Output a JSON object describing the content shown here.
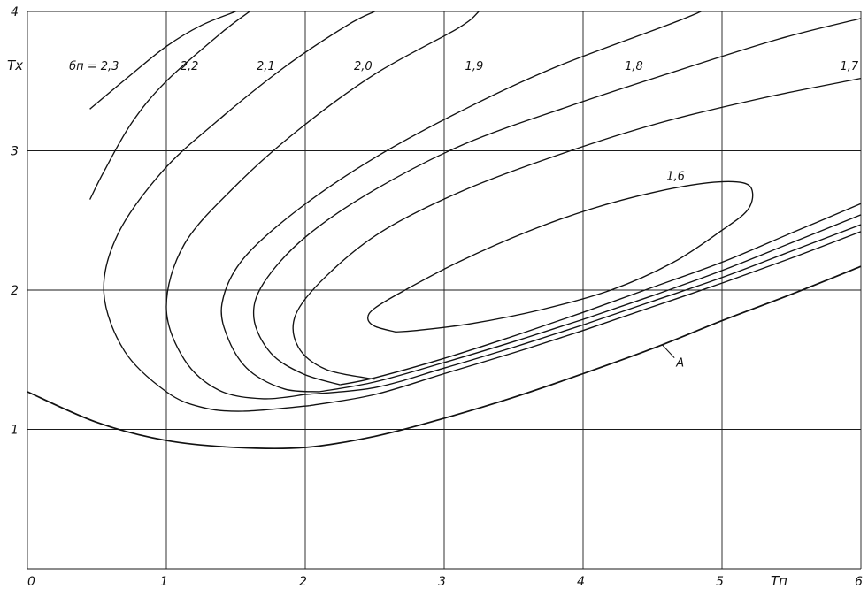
{
  "chart_data": {
    "type": "line",
    "title": "",
    "xlabel": "Tп",
    "ylabel": "Tx",
    "xlim": [
      0,
      6
    ],
    "ylim": [
      0,
      4
    ],
    "grid": true,
    "x_ticks": [
      "0",
      "1",
      "2",
      "3",
      "4",
      "5",
      "6"
    ],
    "y_ticks": [
      "1",
      "2",
      "3",
      "4"
    ],
    "series": [
      {
        "name": "бп = 2,3",
        "points": [
          [
            0.45,
            2.65
          ],
          [
            0.55,
            2.85
          ],
          [
            0.75,
            3.2
          ],
          [
            1.0,
            3.5
          ],
          [
            1.4,
            3.85
          ],
          [
            1.6,
            4.0
          ]
        ]
      },
      {
        "name": "2,2",
        "points": [
          [
            0.45,
            3.3
          ],
          [
            0.75,
            3.55
          ],
          [
            1.0,
            3.75
          ],
          [
            1.25,
            3.9
          ],
          [
            1.5,
            4.0
          ]
        ]
      },
      {
        "name": "2,1",
        "points": [
          [
            2.03,
            1.17
          ],
          [
            1.55,
            1.13
          ],
          [
            1.25,
            1.16
          ],
          [
            1.0,
            1.27
          ],
          [
            0.7,
            1.56
          ],
          [
            0.55,
            1.98
          ],
          [
            0.65,
            2.4
          ],
          [
            0.97,
            2.85
          ],
          [
            1.35,
            3.2
          ],
          [
            1.85,
            3.6
          ],
          [
            2.3,
            3.9
          ],
          [
            2.5,
            4.0
          ]
        ]
      },
      {
        "name": "2,0",
        "points": [
          [
            2.0,
            1.25
          ],
          [
            1.7,
            1.22
          ],
          [
            1.38,
            1.28
          ],
          [
            1.13,
            1.5
          ],
          [
            1.0,
            1.88
          ],
          [
            1.13,
            2.33
          ],
          [
            1.5,
            2.75
          ],
          [
            1.95,
            3.15
          ],
          [
            2.5,
            3.55
          ],
          [
            3.1,
            3.88
          ],
          [
            3.25,
            4.0
          ]
        ]
      },
      {
        "name": "1,9",
        "points": [
          [
            2.1,
            1.27
          ],
          [
            1.85,
            1.29
          ],
          [
            1.6,
            1.42
          ],
          [
            1.45,
            1.64
          ],
          [
            1.4,
            1.9
          ],
          [
            1.55,
            2.22
          ],
          [
            1.95,
            2.58
          ],
          [
            2.5,
            2.95
          ],
          [
            3.15,
            3.3
          ],
          [
            3.8,
            3.6
          ],
          [
            4.6,
            3.9
          ],
          [
            4.85,
            4.0
          ]
        ]
      },
      {
        "name": "1,8",
        "points": [
          [
            2.25,
            1.32
          ],
          [
            1.98,
            1.4
          ],
          [
            1.75,
            1.55
          ],
          [
            1.63,
            1.8
          ],
          [
            1.7,
            2.05
          ],
          [
            2.0,
            2.38
          ],
          [
            2.5,
            2.72
          ],
          [
            3.15,
            3.05
          ],
          [
            3.9,
            3.32
          ],
          [
            4.6,
            3.55
          ],
          [
            5.4,
            3.8
          ],
          [
            6.0,
            3.95
          ]
        ]
      },
      {
        "name": "1,7",
        "points": [
          [
            2.5,
            1.36
          ],
          [
            2.15,
            1.43
          ],
          [
            1.95,
            1.59
          ],
          [
            1.93,
            1.82
          ],
          [
            2.15,
            2.1
          ],
          [
            2.55,
            2.42
          ],
          [
            3.15,
            2.72
          ],
          [
            3.85,
            2.98
          ],
          [
            4.55,
            3.2
          ],
          [
            5.3,
            3.38
          ],
          [
            6.0,
            3.52
          ]
        ]
      },
      {
        "name": "1,6",
        "points": [
          [
            2.65,
            1.7
          ],
          [
            2.5,
            1.74
          ],
          [
            2.45,
            1.8
          ],
          [
            2.5,
            1.87
          ],
          [
            2.7,
            1.99
          ],
          [
            3.1,
            2.2
          ],
          [
            3.6,
            2.42
          ],
          [
            4.05,
            2.58
          ],
          [
            4.5,
            2.7
          ],
          [
            4.9,
            2.77
          ],
          [
            5.15,
            2.77
          ],
          [
            5.22,
            2.7
          ],
          [
            5.18,
            2.57
          ],
          [
            5.0,
            2.43
          ],
          [
            4.65,
            2.2
          ],
          [
            4.2,
            2.0
          ],
          [
            3.7,
            1.86
          ],
          [
            3.2,
            1.76
          ],
          [
            2.8,
            1.71
          ],
          [
            2.65,
            1.7
          ]
        ]
      },
      {
        "name": "",
        "points": [
          [
            2.03,
            1.17
          ],
          [
            2.5,
            1.25
          ],
          [
            3.0,
            1.4
          ],
          [
            3.5,
            1.55
          ],
          [
            4.0,
            1.71
          ],
          [
            4.5,
            1.88
          ],
          [
            5.0,
            2.05
          ],
          [
            5.5,
            2.23
          ],
          [
            6.0,
            2.42
          ]
        ]
      },
      {
        "name": "",
        "points": [
          [
            2.0,
            1.25
          ],
          [
            2.5,
            1.3
          ],
          [
            3.0,
            1.44
          ],
          [
            3.5,
            1.59
          ],
          [
            4.0,
            1.75
          ],
          [
            4.5,
            1.92
          ],
          [
            5.0,
            2.09
          ],
          [
            5.5,
            2.28
          ],
          [
            6.0,
            2.47
          ]
        ]
      },
      {
        "name": "",
        "points": [
          [
            2.1,
            1.27
          ],
          [
            2.5,
            1.34
          ],
          [
            3.0,
            1.48
          ],
          [
            3.5,
            1.63
          ],
          [
            4.0,
            1.79
          ],
          [
            4.5,
            1.96
          ],
          [
            5.0,
            2.14
          ],
          [
            5.5,
            2.34
          ],
          [
            6.0,
            2.54
          ]
        ]
      },
      {
        "name": "",
        "points": [
          [
            2.25,
            1.32
          ],
          [
            2.5,
            1.37
          ],
          [
            3.0,
            1.51
          ],
          [
            3.5,
            1.67
          ],
          [
            4.0,
            1.84
          ],
          [
            4.5,
            2.02
          ],
          [
            5.0,
            2.2
          ],
          [
            5.5,
            2.41
          ],
          [
            6.0,
            2.62
          ]
        ]
      },
      {
        "name": "A",
        "points": [
          [
            0.0,
            1.27
          ],
          [
            0.5,
            1.05
          ],
          [
            1.0,
            0.92
          ],
          [
            1.5,
            0.87
          ],
          [
            2.0,
            0.87
          ],
          [
            2.5,
            0.95
          ],
          [
            3.0,
            1.08
          ],
          [
            3.5,
            1.23
          ],
          [
            4.0,
            1.4
          ],
          [
            4.5,
            1.58
          ],
          [
            5.0,
            1.78
          ],
          [
            5.5,
            1.97
          ],
          [
            6.0,
            2.17
          ]
        ]
      }
    ],
    "labels": [
      {
        "text": "бп = 2,3",
        "x": 0.3,
        "y": 3.58
      },
      {
        "text": "2,2",
        "x": 1.1,
        "y": 3.58
      },
      {
        "text": "2,1",
        "x": 1.65,
        "y": 3.58
      },
      {
        "text": "2,0",
        "x": 2.35,
        "y": 3.58
      },
      {
        "text": "1,9",
        "x": 3.15,
        "y": 3.58
      },
      {
        "text": "1,8",
        "x": 4.3,
        "y": 3.58
      },
      {
        "text": "1,7",
        "x": 5.85,
        "y": 3.58
      },
      {
        "text": "1,6",
        "x": 4.6,
        "y": 2.79
      },
      {
        "text": "A",
        "x": 4.67,
        "y": 1.45
      }
    ]
  }
}
